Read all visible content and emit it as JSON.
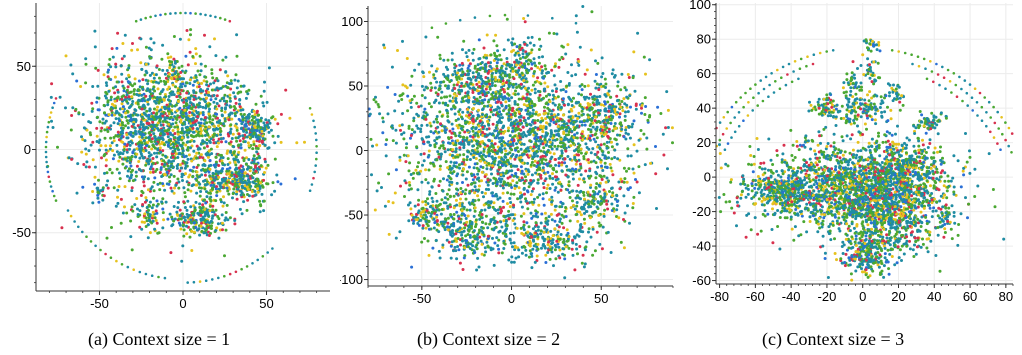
{
  "palette": [
    "#1f8ca3",
    "#4aa832",
    "#e6c21e",
    "#d8314e",
    "#2a6fd6"
  ],
  "chart_data": [
    {
      "type": "scatter",
      "caption": "(a) Context size = 1",
      "xlim": [
        -88,
        88
      ],
      "ylim": [
        -85,
        88
      ],
      "xticks": [
        -50,
        0,
        50
      ],
      "yticks": [
        -50,
        0,
        50
      ],
      "grid": true,
      "clusters": [
        {
          "x": -8,
          "y": 10,
          "sx": 26,
          "sy": 24,
          "n": 1300
        },
        {
          "x": -25,
          "y": 20,
          "sx": 14,
          "sy": 16,
          "n": 300
        },
        {
          "x": 8,
          "y": 25,
          "sx": 12,
          "sy": 12,
          "n": 220
        },
        {
          "x": 42,
          "y": 12,
          "sx": 6,
          "sy": 6,
          "n": 180
        },
        {
          "x": 38,
          "y": -18,
          "sx": 7,
          "sy": 7,
          "n": 220
        },
        {
          "x": 10,
          "y": -42,
          "sx": 8,
          "sy": 5,
          "n": 200
        },
        {
          "x": 20,
          "y": -18,
          "sx": 7,
          "sy": 6,
          "n": 130
        },
        {
          "x": -20,
          "y": -40,
          "sx": 5,
          "sy": 5,
          "n": 60
        },
        {
          "x": -5,
          "y": 44,
          "sx": 3,
          "sy": 3,
          "n": 25
        },
        {
          "x": -50,
          "y": -25,
          "sx": 3,
          "sy": 3,
          "n": 20
        }
      ],
      "arcs": [
        {
          "cx": 0,
          "cy": 0,
          "r": 82,
          "a0": 70,
          "a1": 110,
          "n": 20
        },
        {
          "cx": 0,
          "cy": 0,
          "r": 82,
          "a0": 158,
          "a1": 202,
          "n": 22
        },
        {
          "cx": 0,
          "cy": 0,
          "r": 78,
          "a0": 208,
          "a1": 262,
          "n": 20
        },
        {
          "cx": 0,
          "cy": 0,
          "r": 80,
          "a0": 272,
          "a1": 312,
          "n": 16
        },
        {
          "cx": 0,
          "cy": 0,
          "r": 80,
          "a0": 342,
          "a1": 378,
          "n": 14
        }
      ]
    },
    {
      "type": "scatter",
      "caption": "(b) Context size = 2",
      "xlim": [
        -80,
        90
      ],
      "ylim": [
        -105,
        112
      ],
      "xticks": [
        -50,
        0,
        50
      ],
      "yticks": [
        -100,
        -50,
        0,
        50,
        100
      ],
      "grid": true,
      "clusters": [
        {
          "x": 0,
          "y": 5,
          "sx": 33,
          "sy": 33,
          "n": 2400
        },
        {
          "x": -15,
          "y": 55,
          "sx": 14,
          "sy": 10,
          "n": 260
        },
        {
          "x": 50,
          "y": 30,
          "sx": 10,
          "sy": 12,
          "n": 220
        },
        {
          "x": -45,
          "y": -50,
          "sx": 6,
          "sy": 6,
          "n": 90
        },
        {
          "x": 20,
          "y": -70,
          "sx": 12,
          "sy": 8,
          "n": 200
        },
        {
          "x": -20,
          "y": -65,
          "sx": 12,
          "sy": 10,
          "n": 220
        },
        {
          "x": 45,
          "y": -40,
          "sx": 8,
          "sy": 8,
          "n": 120
        },
        {
          "x": 5,
          "y": 70,
          "sx": 6,
          "sy": 8,
          "n": 80
        }
      ],
      "arcs": [
        {
          "cx": 0,
          "cy": 0,
          "r": 105,
          "a0": 92,
          "a1": 115,
          "n": 6
        },
        {
          "cx": 0,
          "cy": 0,
          "r": 105,
          "a0": 70,
          "a1": 85,
          "n": 3
        }
      ]
    },
    {
      "type": "scatter",
      "caption": "(c) Context size = 3",
      "xlim": [
        -82,
        84
      ],
      "ylim": [
        -62,
        101
      ],
      "xticks": [
        -80,
        -60,
        -40,
        -20,
        0,
        20,
        40,
        60,
        80
      ],
      "yticks": [
        -60,
        -40,
        -20,
        0,
        20,
        40,
        60,
        80,
        100
      ],
      "grid": true,
      "clusters": [
        {
          "x": -5,
          "y": -5,
          "sx": 26,
          "sy": 13,
          "n": 1800
        },
        {
          "x": 15,
          "y": -25,
          "sx": 14,
          "sy": 10,
          "n": 500
        },
        {
          "x": -45,
          "y": -8,
          "sx": 10,
          "sy": 5,
          "n": 250
        },
        {
          "x": 2,
          "y": -45,
          "sx": 7,
          "sy": 6,
          "n": 220
        },
        {
          "x": 25,
          "y": 5,
          "sx": 10,
          "sy": 8,
          "n": 250
        },
        {
          "x": -20,
          "y": 40,
          "sx": 5,
          "sy": 3,
          "n": 60
        },
        {
          "x": 0,
          "y": 40,
          "sx": 8,
          "sy": 6,
          "n": 140
        },
        {
          "x": 37,
          "y": 32,
          "sx": 4,
          "sy": 3,
          "n": 60
        },
        {
          "x": 18,
          "y": 48,
          "sx": 3,
          "sy": 3,
          "n": 30
        },
        {
          "x": 5,
          "y": 77,
          "sx": 3,
          "sy": 2,
          "n": 25
        },
        {
          "x": 5,
          "y": 60,
          "sx": 3,
          "sy": 4,
          "n": 30
        },
        {
          "x": -5,
          "y": 55,
          "sx": 3,
          "sy": 5,
          "n": 30
        },
        {
          "x": 45,
          "y": -20,
          "sx": 3,
          "sy": 4,
          "n": 30
        }
      ],
      "arcs": [
        {
          "cx": 0,
          "cy": -20,
          "r": 95,
          "a0": 100,
          "a1": 165,
          "n": 30
        },
        {
          "cx": 0,
          "cy": -20,
          "r": 90,
          "a0": 108,
          "a1": 160,
          "n": 22
        },
        {
          "cx": 0,
          "cy": -20,
          "r": 85,
          "a0": 115,
          "a1": 155,
          "n": 16
        },
        {
          "cx": 0,
          "cy": -20,
          "r": 95,
          "a0": 15,
          "a1": 80,
          "n": 30
        },
        {
          "cx": 0,
          "cy": -20,
          "r": 90,
          "a0": 20,
          "a1": 72,
          "n": 22
        },
        {
          "cx": 0,
          "cy": -20,
          "r": 85,
          "a0": 25,
          "a1": 65,
          "n": 16
        }
      ]
    }
  ]
}
